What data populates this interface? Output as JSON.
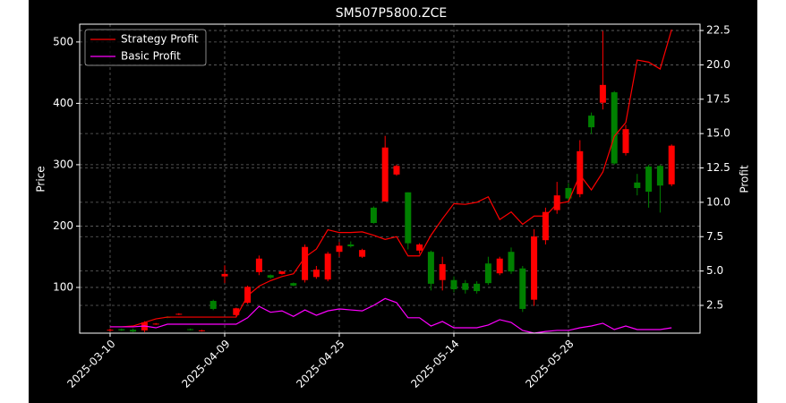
{
  "chart_data": {
    "type": "candlestick",
    "title": "SM507P5800.ZCE",
    "ylabel": "Price",
    "y2label": "Profit",
    "categories": [
      "2025-03-10",
      null,
      null,
      null,
      null,
      null,
      null,
      null,
      null,
      null,
      "2025-04-09",
      null,
      null,
      null,
      null,
      null,
      null,
      null,
      null,
      null,
      "2025-04-25",
      null,
      null,
      null,
      null,
      null,
      null,
      null,
      null,
      null,
      "2025-05-14",
      null,
      null,
      null,
      null,
      null,
      null,
      null,
      null,
      null,
      "2025-05-28",
      null,
      null,
      null,
      null,
      null,
      null,
      null,
      null,
      null
    ],
    "open": [
      30,
      32,
      31,
      30,
      40,
      52,
      56,
      32,
      29,
      78,
      118,
      55,
      75,
      125,
      120,
      122,
      107,
      112,
      117,
      113,
      158,
      170,
      150,
      230,
      240,
      284,
      255,
      160,
      158,
      112,
      112,
      107,
      106,
      139,
      123,
      158,
      131,
      80,
      177,
      226,
      262,
      252,
      380,
      401,
      418,
      319,
      271,
      297,
      298,
      268
    ],
    "close": [
      31,
      30,
      28,
      43,
      41,
      51,
      57,
      31,
      30,
      65,
      122,
      66,
      101,
      147,
      116,
      126,
      103,
      166,
      129,
      155,
      168,
      167,
      161,
      205,
      328,
      298,
      172,
      170,
      106,
      138,
      97,
      96,
      94,
      107,
      147,
      126,
      65,
      183,
      223,
      250,
      245,
      322,
      361,
      430,
      302,
      358,
      262,
      256,
      266,
      331
    ],
    "high": [
      33,
      33,
      33,
      45,
      42,
      53,
      58,
      33,
      31,
      80,
      136,
      67,
      103,
      152,
      121,
      127,
      108,
      170,
      135,
      158,
      174,
      175,
      163,
      232,
      347,
      300,
      255,
      172,
      160,
      150,
      118,
      112,
      110,
      150,
      150,
      165,
      135,
      195,
      230,
      272,
      270,
      340,
      385,
      518,
      420,
      365,
      285,
      300,
      300,
      333
    ],
    "low": [
      28,
      29,
      27,
      27,
      39,
      50,
      55,
      30,
      28,
      63,
      107,
      53,
      73,
      120,
      114,
      121,
      102,
      108,
      114,
      110,
      150,
      165,
      148,
      204,
      240,
      282,
      162,
      155,
      95,
      95,
      92,
      90,
      90,
      104,
      120,
      122,
      60,
      70,
      170,
      220,
      240,
      247,
      350,
      390,
      300,
      315,
      250,
      230,
      222,
      265
    ],
    "up_color": "#ff0000",
    "down_color": "#008000",
    "ylim": [
      25.5,
      529
    ],
    "yticks": [
      100,
      200,
      300,
      400,
      500
    ],
    "y2lim": [
      0.48,
      22.96
    ],
    "y2ticks": [
      2.5,
      {
        "value": 5,
        "label": "5.0"
      },
      7.5,
      {
        "value": 10,
        "label": "10.0"
      },
      12.5,
      {
        "value": 15,
        "label": "15.0"
      },
      17.5,
      {
        "value": 20,
        "label": "20.0"
      },
      22.5
    ],
    "grid": true,
    "legend": "upper left",
    "series": [
      {
        "name": "Strategy Profit",
        "color": "#ff0000",
        "axis": "y2",
        "values": [
          0.94,
          0.94,
          1.0,
          1.26,
          1.52,
          1.65,
          1.65,
          1.65,
          1.65,
          1.65,
          1.65,
          1.65,
          3.2,
          3.9,
          4.3,
          4.6,
          4.8,
          6.0,
          6.6,
          8.0,
          7.8,
          7.8,
          7.85,
          7.6,
          7.3,
          7.5,
          6.1,
          6.1,
          7.6,
          8.8,
          9.9,
          9.85,
          10.0,
          10.4,
          8.75,
          9.3,
          8.4,
          9.0,
          9.0,
          9.9,
          10.05,
          12.0,
          10.9,
          12.2,
          14.8,
          15.8,
          20.35,
          20.2,
          19.7,
          22.56
        ]
      },
      {
        "name": "Basic Profit",
        "color": "#ff00ff",
        "axis": "y2",
        "values": [
          0.94,
          0.94,
          0.94,
          1.0,
          0.87,
          1.13,
          1.13,
          1.13,
          1.13,
          1.13,
          1.13,
          1.13,
          1.6,
          2.43,
          2.0,
          2.1,
          1.7,
          2.17,
          1.78,
          2.1,
          2.24,
          2.17,
          2.1,
          2.5,
          3.0,
          2.7,
          1.6,
          1.6,
          1.0,
          1.33,
          0.87,
          0.87,
          0.87,
          1.07,
          1.46,
          1.26,
          0.68,
          0.48,
          0.6,
          0.68,
          0.68,
          0.87,
          1.0,
          1.2,
          0.74,
          1.0,
          0.74,
          0.74,
          0.74,
          0.87
        ]
      }
    ]
  }
}
